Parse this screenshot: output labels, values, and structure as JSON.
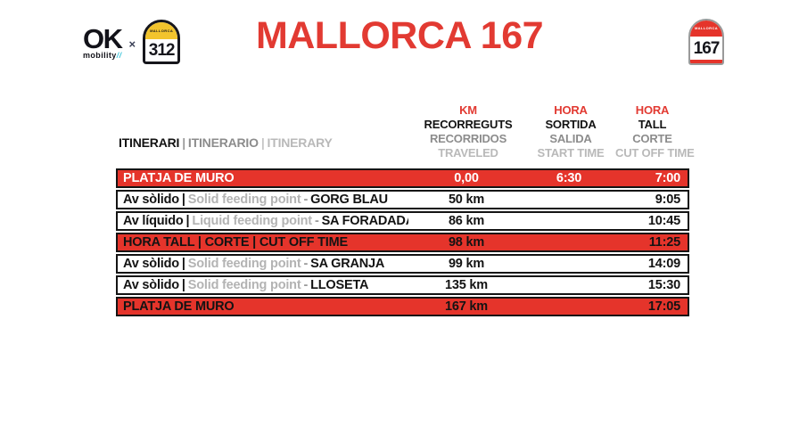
{
  "logo": {
    "ok": "OK",
    "mobility": "mobility",
    "slashes": "//",
    "times": "×",
    "badge_312": {
      "region": "MALLORCA",
      "number": "312"
    },
    "badge_167": {
      "region": "MALLORCA",
      "number": "167"
    }
  },
  "title": "MALLORCA 167",
  "itinerary_header": {
    "ca": "ITINERARI",
    "es": "ITINERARIO",
    "en": "ITINERARY"
  },
  "separators": {
    "pipe": "|",
    "dash": "-"
  },
  "columns": {
    "km": {
      "l1": "KM",
      "l2": "RECORREGUTS",
      "l3": "RECORRIDOS",
      "l4": "TRAVELED"
    },
    "start": {
      "l1": "HORA",
      "l2": "SORTIDA",
      "l3": "SALIDA",
      "l4": "START TIME"
    },
    "cutoff": {
      "l1": "HORA",
      "l2": "TALL",
      "l3": "CORTE",
      "l4": "CUT OFF TIME"
    }
  },
  "rows": [
    {
      "style": "red-light",
      "primary": "PLATJA DE MURO",
      "secondary": "",
      "location": "",
      "km": "0,00",
      "start": "6:30",
      "cutoff": "7:00"
    },
    {
      "style": "white",
      "primary": "Av sòlido",
      "secondary": "Solid feeding point",
      "location": "GORG BLAU",
      "km": "50 km",
      "start": "",
      "cutoff": "9:05"
    },
    {
      "style": "white",
      "primary": "Av líquido",
      "secondary": "Liquid feeding point",
      "location": "SA FORADADA",
      "km": "86 km",
      "start": "",
      "cutoff": "10:45"
    },
    {
      "style": "red-dark",
      "primary": "HORA TALL | CORTE | CUT OFF TIME",
      "secondary": "",
      "location": "",
      "km": "98 km",
      "start": "",
      "cutoff": "11:25"
    },
    {
      "style": "white",
      "primary": "Av sòlido",
      "secondary": "Solid feeding point",
      "location": "SA GRANJA",
      "km": "99 km",
      "start": "",
      "cutoff": "14:09"
    },
    {
      "style": "white",
      "primary": "Av sòlido",
      "secondary": "Solid feeding point",
      "location": "LLOSETA",
      "km": "135 km",
      "start": "",
      "cutoff": "15:30"
    },
    {
      "style": "red-dark",
      "primary": "PLATJA DE MURO",
      "secondary": "",
      "location": "",
      "km": "167 km",
      "start": "",
      "cutoff": "17:05"
    }
  ],
  "colors": {
    "red": "#e5342b",
    "title_red": "#e23a32",
    "badge_yellow": "#f2c42d",
    "text_black": "#131313",
    "gray_mid": "#8c8c8c",
    "gray_light": "#b9b9b9"
  }
}
